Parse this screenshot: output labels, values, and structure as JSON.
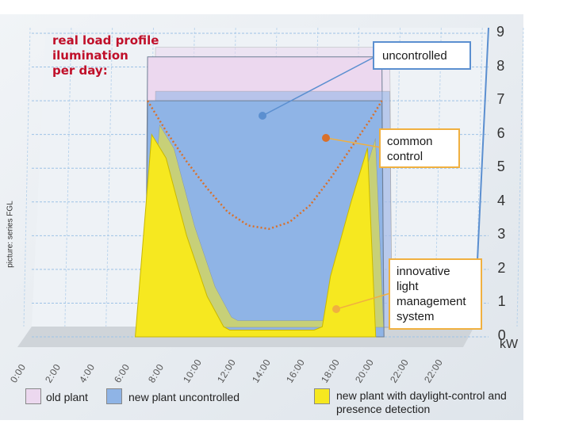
{
  "chart_data": {
    "type": "area",
    "title_lines": [
      "real load profile",
      "ilumination",
      "per day:"
    ],
    "source_note": "picture: series FGL",
    "yunit": "kW",
    "ylim": [
      0,
      9
    ],
    "yticks": [
      "0",
      "1",
      "2",
      "3",
      "4",
      "5",
      "6",
      "7",
      "8",
      "9"
    ],
    "xticks": [
      "0:00",
      "2:00",
      "4:00",
      "6:00",
      "8:00",
      "10:00",
      "12:00",
      "14:00",
      "16:00",
      "18:00",
      "20:00",
      "22:00",
      "22:00"
    ],
    "series": [
      {
        "name": "old plant",
        "color": "#ecd8ef",
        "x": [
          6.0,
          6.1,
          17.5,
          17.6
        ],
        "y": [
          0,
          8.3,
          8.3,
          0
        ]
      },
      {
        "name": "new plant uncontrolled",
        "color": "#8fb4e6",
        "x": [
          6.0,
          6.1,
          17.5,
          17.6
        ],
        "y": [
          0,
          7.0,
          7.0,
          0
        ]
      },
      {
        "name": "common control",
        "color": "#d9702a",
        "x": [
          6.1,
          7.0,
          8.0,
          9.0,
          10.0,
          11.0,
          12.0,
          13.0,
          14.0,
          15.0,
          16.0,
          17.0,
          17.5
        ],
        "y": [
          7.0,
          6.1,
          5.2,
          4.4,
          3.7,
          3.3,
          3.2,
          3.4,
          3.9,
          4.7,
          5.6,
          6.5,
          7.0
        ]
      },
      {
        "name": "new plant with daylight-control and presence detection",
        "color": "#f6e820",
        "x": [
          5.5,
          6.3,
          7.0,
          8.0,
          9.0,
          9.8,
          10.1,
          14.2,
          14.6,
          15.0,
          16.0,
          16.8,
          17.2
        ],
        "y": [
          0,
          6.0,
          5.3,
          3.0,
          1.2,
          0.3,
          0.2,
          0.2,
          0.3,
          1.8,
          4.0,
          5.6,
          0
        ]
      }
    ]
  },
  "callouts": {
    "uncontrolled": "uncontrolled",
    "common_control": "common control",
    "innovative": "innovative light management system"
  },
  "legend": {
    "old_plant": "old plant",
    "new_uncontrolled": "new plant uncontrolled",
    "new_daylight": "new plant with daylight-control and presence detection"
  },
  "colors": {
    "old_plant": "#ecd8ef",
    "new_uncontrolled": "#8fb4e6",
    "new_daylight": "#f6e820",
    "grid": "#9ec3e6",
    "wall": "#e8edf2",
    "floor": "#d4d8dc",
    "curve": "#d9702a",
    "callout_blue": "#5b8fd0",
    "callout_orange": "#f0b040"
  }
}
